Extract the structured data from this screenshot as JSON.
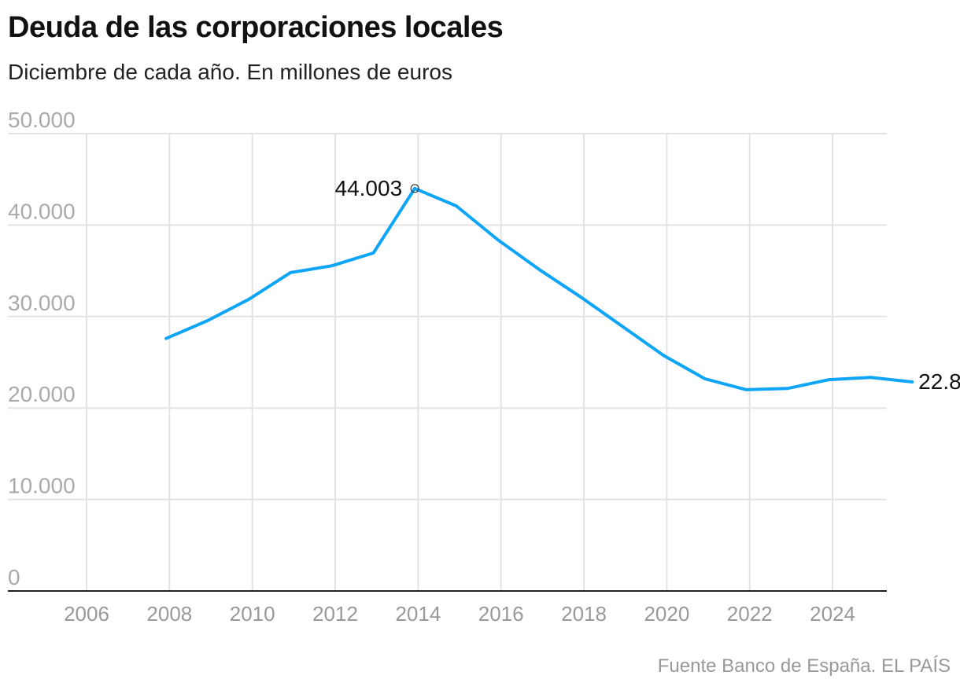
{
  "chart_data": {
    "type": "line",
    "title": "Deuda de las corporaciones locales",
    "subtitle": "Diciembre de cada año. En millones de euros",
    "source": "Fuente Banco de España. EL PAÍS",
    "xlabel": "",
    "ylabel": "",
    "ylim": [
      0,
      50000
    ],
    "xlim": [
      2005,
      2026
    ],
    "y_ticks": [
      0,
      10000,
      20000,
      30000,
      40000,
      50000
    ],
    "y_tick_labels": [
      "0",
      "10.000",
      "20.000",
      "30.000",
      "40.000",
      "50.000"
    ],
    "x_ticks": [
      2006,
      2008,
      2010,
      2012,
      2014,
      2016,
      2018,
      2020,
      2022,
      2024
    ],
    "x_tick_labels": [
      "2006",
      "2008",
      "2010",
      "2012",
      "2014",
      "2016",
      "2018",
      "2020",
      "2022",
      "2024"
    ],
    "grid": true,
    "color": "#0ea5f7",
    "x": [
      2007,
      2008,
      2009,
      2010,
      2011,
      2012,
      2013,
      2014,
      2015,
      2016,
      2017,
      2018,
      2019,
      2020,
      2021,
      2022,
      2023,
      2024,
      2025
    ],
    "values": [
      27600,
      29550,
      31900,
      34800,
      35550,
      36950,
      44003,
      42100,
      38400,
      35150,
      32150,
      28950,
      25750,
      23200,
      22000,
      22150,
      23100,
      23350,
      22848
    ],
    "annotations": [
      {
        "x": 2013,
        "y": 44003,
        "text": "44.003"
      },
      {
        "x": 2025,
        "y": 22848,
        "text": "22.848"
      }
    ]
  }
}
